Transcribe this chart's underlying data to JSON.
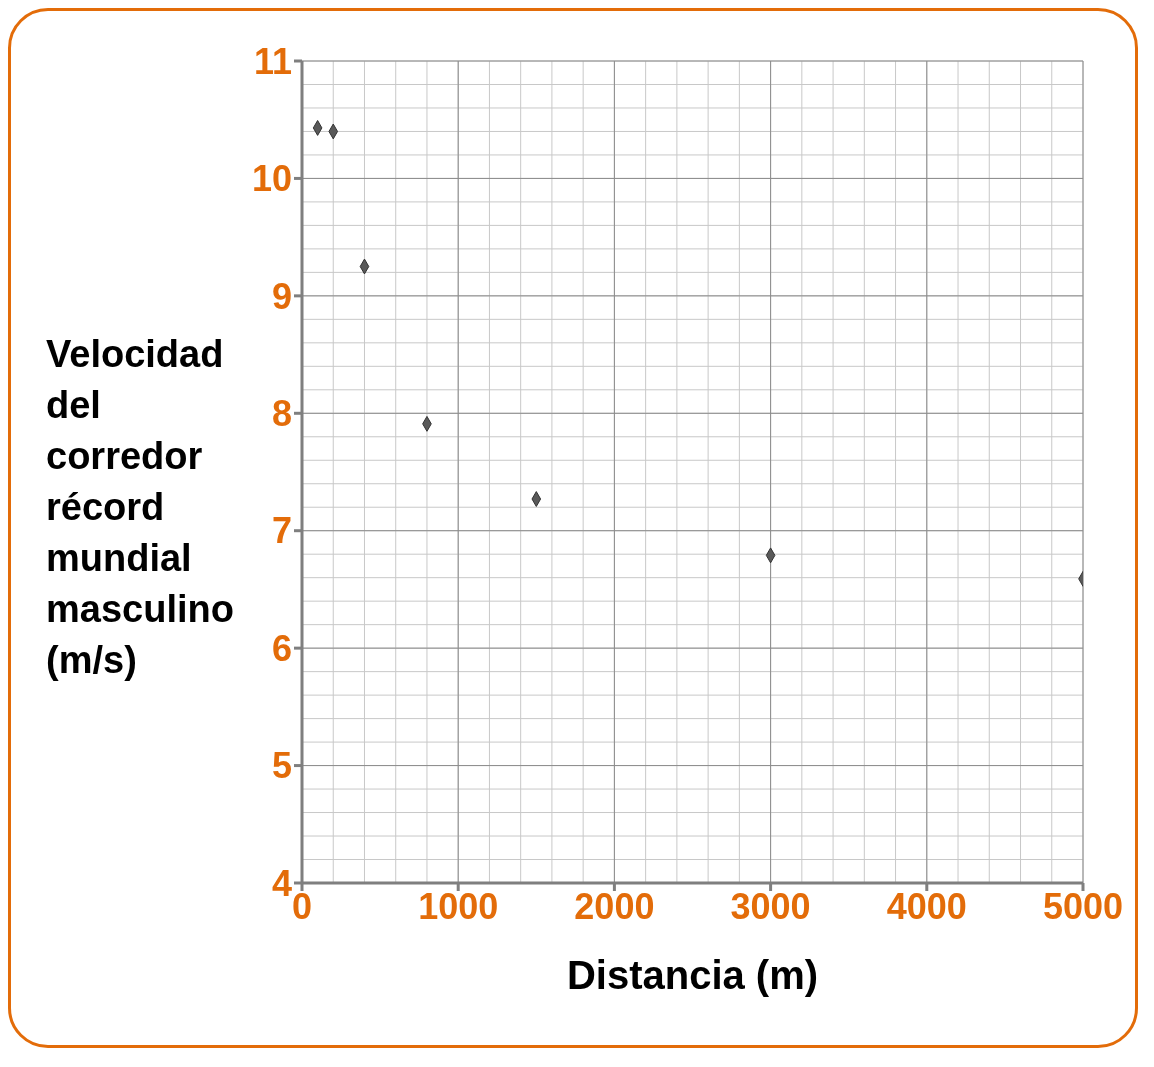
{
  "chart_data": {
    "type": "scatter",
    "xlabel": "Distancia (m)",
    "ylabel": "Velocidad del corredor récord mundial masculino (m/s)",
    "x": [
      100,
      200,
      400,
      800,
      1500,
      3000,
      5000
    ],
    "series": [
      {
        "color": "#595959",
        "values": [
          10.43,
          10.4,
          9.25,
          7.91,
          7.27,
          6.79,
          6.59
        ]
      }
    ],
    "xlim": [
      0,
      5000
    ],
    "xticks": [
      0,
      1000,
      2000,
      3000,
      4000,
      5000
    ],
    "ylim": [
      4,
      11
    ],
    "yticks": [
      4,
      5,
      6,
      7,
      8,
      9,
      10,
      11
    ],
    "grid": true,
    "marker": "diamond",
    "legend": false
  }
}
